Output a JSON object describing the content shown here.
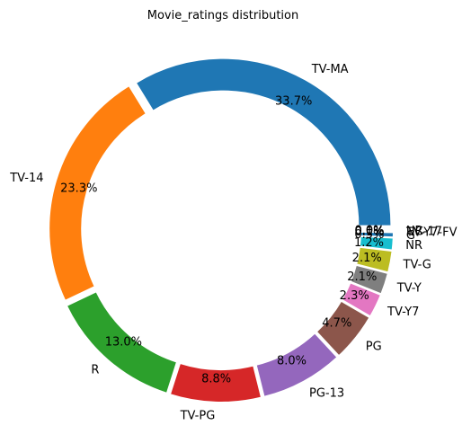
{
  "chart_data": {
    "type": "pie",
    "title": "Movie_ratings distribution",
    "donut": true,
    "start_angle_deg": 0,
    "direction": "counterclockwise",
    "pct_format": "1 decimal",
    "slices": [
      {
        "label": "TV-MA",
        "value": 33.7,
        "pct_label": "33.7%",
        "color": "#1f77b4"
      },
      {
        "label": "TV-14",
        "value": 23.3,
        "pct_label": "23.3%",
        "color": "#ff7f0e"
      },
      {
        "label": "R",
        "value": 13.0,
        "pct_label": "13.0%",
        "color": "#2ca02c"
      },
      {
        "label": "TV-PG",
        "value": 8.8,
        "pct_label": "8.8%",
        "color": "#d62728"
      },
      {
        "label": "PG-13",
        "value": 8.0,
        "pct_label": "8.0%",
        "color": "#9467bd"
      },
      {
        "label": "PG",
        "value": 4.7,
        "pct_label": "4.7%",
        "color": "#8c564b"
      },
      {
        "label": "TV-Y7",
        "value": 2.3,
        "pct_label": "2.3%",
        "color": "#e377c2"
      },
      {
        "label": "TV-Y",
        "value": 2.1,
        "pct_label": "2.1%",
        "color": "#7f7f7f"
      },
      {
        "label": "TV-G",
        "value": 2.1,
        "pct_label": "2.1%",
        "color": "#bcbd22"
      },
      {
        "label": "NR",
        "value": 1.2,
        "pct_label": "1.2%",
        "color": "#17becf"
      },
      {
        "label": "G",
        "value": 0.5,
        "pct_label": "0.5%",
        "color": "#1f77b4"
      },
      {
        "label": "TV-Y7-FV",
        "value": 0.1,
        "pct_label": "0.1%",
        "color": "#ff7f0e"
      },
      {
        "label": "NC-17",
        "value": 0.05,
        "pct_label": "0.0%",
        "color": "#2ca02c"
      },
      {
        "label": "UR",
        "value": 0.04,
        "pct_label": "0.0%",
        "color": "#d62728"
      }
    ]
  }
}
